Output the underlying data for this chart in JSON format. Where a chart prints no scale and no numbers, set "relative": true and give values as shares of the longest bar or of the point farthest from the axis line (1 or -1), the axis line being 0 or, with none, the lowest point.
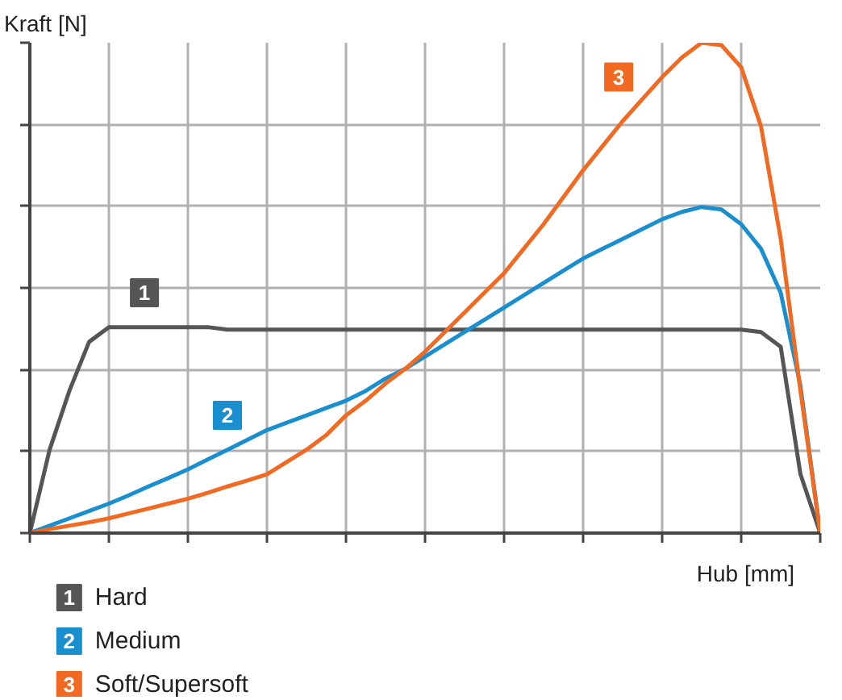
{
  "chart_data": {
    "type": "line",
    "relative": true,
    "ylabel": "Kraft [N]",
    "xlabel": "Hub [mm]",
    "grid": true,
    "legend": "bottom",
    "marker": "none",
    "line_style": "solid",
    "categories": [
      null,
      null,
      null,
      null,
      null,
      null,
      null,
      null,
      null,
      null,
      null,
      null,
      null,
      null,
      null,
      null,
      null,
      null,
      null,
      null,
      null,
      null,
      null,
      null,
      null,
      null,
      null,
      null,
      null,
      null,
      null,
      null,
      null,
      null,
      null,
      null,
      null,
      null,
      null,
      null,
      null
    ],
    "annotations": [
      {
        "text": "1",
        "y": 0.49
      },
      {
        "text": "2",
        "y": 0.24
      },
      {
        "text": "3",
        "y": 0.93
      }
    ],
    "series": [
      {
        "name": "Hard",
        "color": "#555555",
        "values": [
          0,
          0.17,
          0.29,
          0.39,
          0.42,
          0.42,
          0.42,
          0.42,
          0.42,
          0.42,
          0.415,
          0.415,
          0.415,
          0.415,
          0.415,
          0.415,
          0.415,
          0.415,
          0.415,
          0.415,
          0.415,
          0.415,
          0.415,
          0.415,
          0.415,
          0.415,
          0.415,
          0.415,
          0.415,
          0.415,
          0.415,
          0.415,
          0.415,
          0.415,
          0.415,
          0.415,
          0.415,
          0.41,
          0.38,
          0.12,
          0
        ]
      },
      {
        "name": "Medium",
        "color": "#1a8fd0",
        "values": [
          0,
          0.015,
          0.03,
          0.045,
          0.06,
          0.077,
          0.095,
          0.112,
          0.13,
          0.15,
          0.17,
          0.19,
          0.21,
          0.225,
          0.24,
          0.255,
          0.27,
          0.29,
          0.315,
          0.335,
          0.36,
          0.385,
          0.41,
          0.435,
          0.46,
          0.485,
          0.51,
          0.535,
          0.56,
          0.58,
          0.6,
          0.62,
          0.64,
          0.655,
          0.665,
          0.66,
          0.63,
          0.58,
          0.49,
          0.3,
          0
        ]
      },
      {
        "name": "Soft/Supersoft",
        "color": "#f26a21",
        "values": [
          0,
          0.008,
          0.015,
          0.022,
          0.03,
          0.04,
          0.05,
          0.06,
          0.07,
          0.082,
          0.095,
          0.107,
          0.12,
          0.145,
          0.17,
          0.2,
          0.24,
          0.27,
          0.305,
          0.335,
          0.37,
          0.41,
          0.45,
          0.49,
          0.53,
          0.58,
          0.63,
          0.685,
          0.74,
          0.79,
          0.84,
          0.885,
          0.93,
          0.97,
          1,
          0.995,
          0.95,
          0.83,
          0.6,
          0.29,
          0
        ]
      }
    ]
  }
}
